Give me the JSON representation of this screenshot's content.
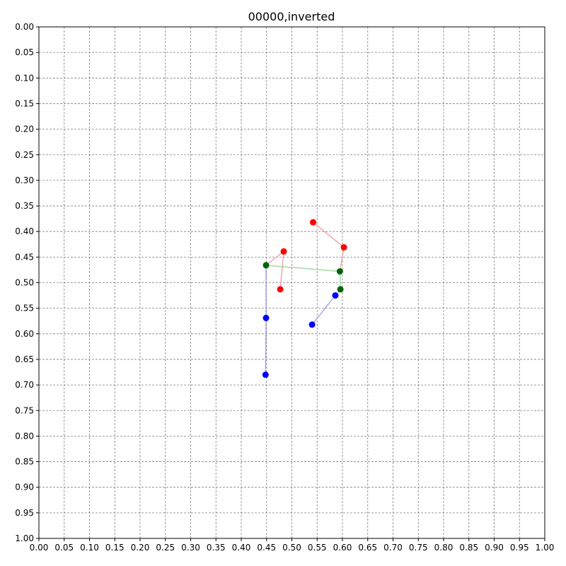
{
  "chart_data": {
    "type": "scatter",
    "title": "00000,inverted",
    "xlabel": "",
    "ylabel": "",
    "xlim": [
      0,
      1
    ],
    "ylim": [
      1,
      0
    ],
    "y_inverted": true,
    "grid": true,
    "legend": "none",
    "x_ticks": [
      "0.00",
      "0.05",
      "0.10",
      "0.15",
      "0.20",
      "0.25",
      "0.30",
      "0.35",
      "0.40",
      "0.45",
      "0.50",
      "0.55",
      "0.60",
      "0.65",
      "0.70",
      "0.75",
      "0.80",
      "0.85",
      "0.90",
      "0.95",
      "1.00"
    ],
    "y_ticks": [
      "0.00",
      "0.05",
      "0.10",
      "0.15",
      "0.20",
      "0.25",
      "0.30",
      "0.35",
      "0.40",
      "0.45",
      "0.50",
      "0.55",
      "0.60",
      "0.65",
      "0.70",
      "0.75",
      "0.80",
      "0.85",
      "0.90",
      "0.95",
      "1.00"
    ],
    "series": [
      {
        "color": "#ff0000",
        "line_color": "#f4a6a6",
        "points": [
          {
            "x": 0.542,
            "y": 0.382
          },
          {
            "x": 0.603,
            "y": 0.431
          },
          {
            "x": 0.484,
            "y": 0.439
          },
          {
            "x": 0.477,
            "y": 0.513
          }
        ],
        "segments": [
          [
            0,
            1
          ],
          [
            2,
            3
          ]
        ]
      },
      {
        "color": "#006400",
        "line_color": "#a6d8a6",
        "points": [
          {
            "x": 0.449,
            "y": 0.466
          },
          {
            "x": 0.595,
            "y": 0.478
          },
          {
            "x": 0.596,
            "y": 0.513
          }
        ],
        "segments": [
          [
            0,
            1
          ]
        ]
      },
      {
        "color": "#0000ff",
        "line_color": "#a6a6f0",
        "points": [
          {
            "x": 0.449,
            "y": 0.569
          },
          {
            "x": 0.448,
            "y": 0.68
          },
          {
            "x": 0.586,
            "y": 0.525
          },
          {
            "x": 0.54,
            "y": 0.582
          }
        ],
        "segments": [
          [
            0,
            1
          ],
          [
            2,
            3
          ]
        ]
      }
    ],
    "connectors": [
      {
        "color": "#f4a6a6",
        "from": {
          "x": 0.603,
          "y": 0.431
        },
        "to": {
          "x": 0.595,
          "y": 0.478
        }
      },
      {
        "color": "#f4a6a6",
        "from": {
          "x": 0.484,
          "y": 0.439
        },
        "to": {
          "x": 0.449,
          "y": 0.466
        }
      },
      {
        "color": "#a6a6f0",
        "from": {
          "x": 0.449,
          "y": 0.466
        },
        "to": {
          "x": 0.449,
          "y": 0.569
        }
      },
      {
        "color": "#a6d8a6",
        "from": {
          "x": 0.595,
          "y": 0.478
        },
        "to": {
          "x": 0.596,
          "y": 0.513
        }
      },
      {
        "color": "#a6a6f0",
        "from": {
          "x": 0.596,
          "y": 0.513
        },
        "to": {
          "x": 0.586,
          "y": 0.525
        }
      }
    ]
  }
}
